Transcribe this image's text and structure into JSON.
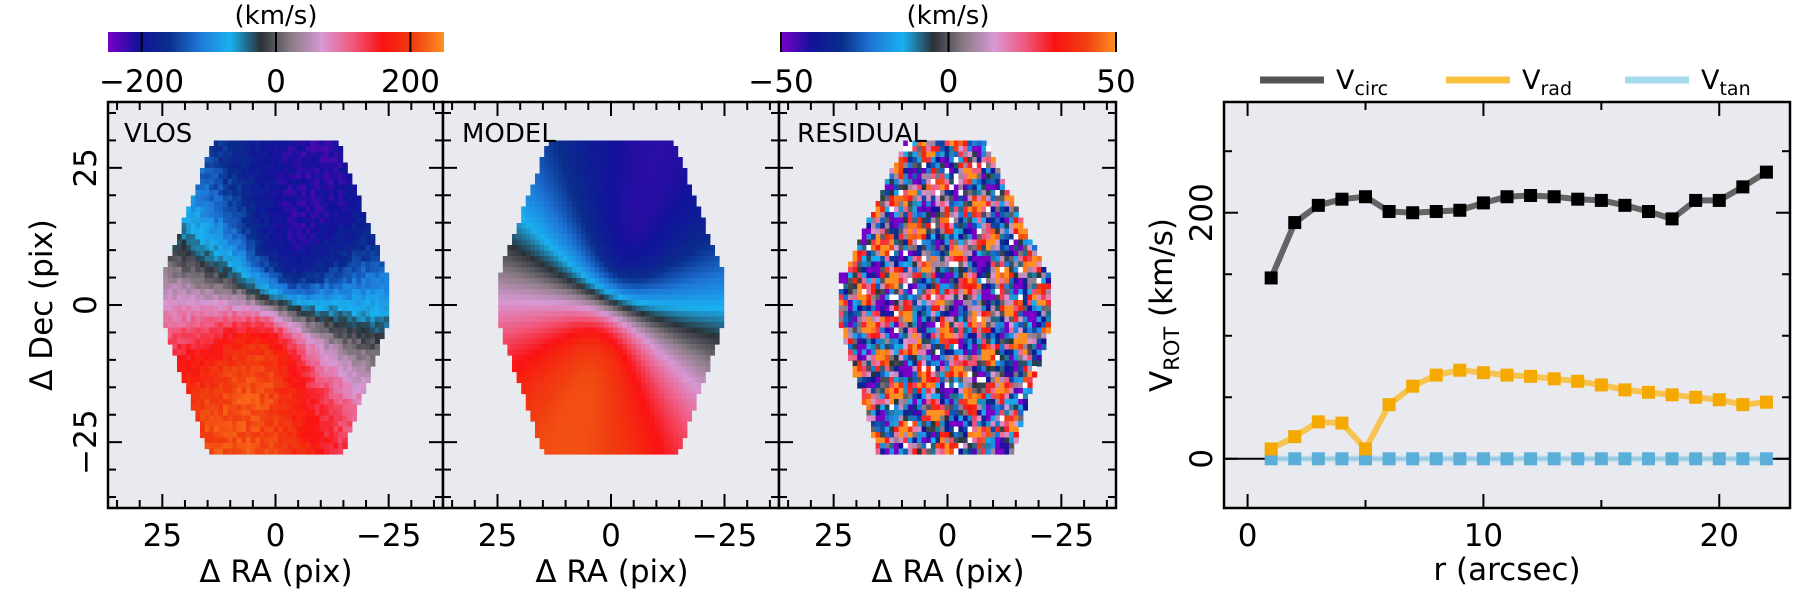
{
  "figure": {
    "colorbars": [
      {
        "label": "(km/s)",
        "ticks": [
          "−200",
          "0",
          "200"
        ],
        "vmin": -250,
        "vmax": 250,
        "tick_values": [
          -200,
          0,
          200
        ]
      },
      {
        "label": "(km/s)",
        "ticks": [
          "−50",
          "0",
          "50"
        ],
        "vmin": -50,
        "vmax": 50,
        "tick_values": [
          -50,
          0,
          50
        ]
      }
    ],
    "panels": [
      {
        "title": "VLOS",
        "type": "velocity_map",
        "kind": "vlos"
      },
      {
        "title": "MODEL",
        "type": "velocity_map",
        "kind": "model"
      },
      {
        "title": "RESIDUAL",
        "type": "velocity_map",
        "kind": "residual"
      }
    ],
    "map_axes": {
      "xlabel": "Δ RA (pix)",
      "ylabel": "Δ Dec (pix)",
      "xticks": [
        "25",
        "0",
        "−25"
      ],
      "yticks": [
        "25",
        "0",
        "−25"
      ],
      "xlim": [
        37,
        -37
      ],
      "ylim": [
        -37,
        37
      ]
    },
    "colormap_stops": [
      "#7a00c8",
      "#12129a",
      "#0a2e8c",
      "#1e78d8",
      "#1ab0f0",
      "#2a3238",
      "#8a7c86",
      "#d898d4",
      "#f05a80",
      "#fa1212",
      "#f03e10",
      "#ff9020"
    ]
  },
  "chart_data": {
    "type": "line",
    "title": "",
    "xlabel": "r (arcsec)",
    "ylabel": "V_ROT (km/s)",
    "xlim": [
      -1,
      23
    ],
    "ylim": [
      -40,
      290
    ],
    "xticks": [
      "0",
      "10",
      "20"
    ],
    "yticks": [
      "0",
      "200"
    ],
    "legend_placement": "top",
    "series": [
      {
        "name": "V_circ",
        "label_main": "V",
        "label_sub": "circ",
        "color": "#555555",
        "marker_color": "#000000",
        "x": [
          1,
          2,
          3,
          4,
          5,
          6,
          7,
          8,
          9,
          10,
          11,
          12,
          13,
          14,
          15,
          16,
          17,
          18,
          19,
          20,
          21,
          22
        ],
        "y": [
          147,
          192,
          206,
          211,
          213,
          201,
          200,
          201,
          202,
          208,
          213,
          214,
          213,
          211,
          210,
          206,
          201,
          195,
          210,
          210,
          221,
          233
        ]
      },
      {
        "name": "V_rad",
        "label_main": "V",
        "label_sub": "rad",
        "color": "#f8c040",
        "marker_color": "#f5a800",
        "x": [
          1,
          2,
          3,
          4,
          5,
          6,
          7,
          8,
          9,
          10,
          11,
          12,
          13,
          14,
          15,
          16,
          17,
          18,
          19,
          20,
          21,
          22
        ],
        "y": [
          8,
          18,
          30,
          29,
          8,
          44,
          59,
          68,
          72,
          70,
          68,
          67,
          65,
          63,
          60,
          56,
          54,
          52,
          50,
          48,
          44,
          46
        ]
      },
      {
        "name": "V_tan",
        "label_main": "V",
        "label_sub": "tan",
        "color": "#a8d8f0",
        "marker_color": "#5aaed8",
        "x": [
          1,
          2,
          3,
          4,
          5,
          6,
          7,
          8,
          9,
          10,
          11,
          12,
          13,
          14,
          15,
          16,
          17,
          18,
          19,
          20,
          21,
          22
        ],
        "y": [
          0,
          0,
          0,
          0,
          0,
          0,
          0,
          0,
          0,
          0,
          0,
          0,
          0,
          0,
          0,
          0,
          0,
          0,
          0,
          0,
          0,
          0
        ]
      }
    ]
  }
}
